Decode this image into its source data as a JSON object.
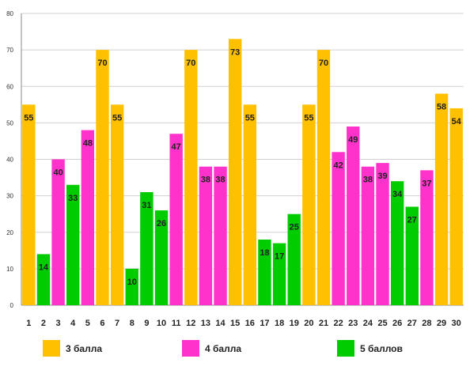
{
  "chart_data": {
    "type": "bar",
    "title": "",
    "xlabel": "",
    "ylabel": "",
    "ylim": [
      0,
      80
    ],
    "yticks": [
      0,
      10,
      20,
      30,
      40,
      50,
      60,
      70,
      80
    ],
    "grid": true,
    "legend_position": "bottom",
    "categories": [
      "1",
      "2",
      "3",
      "4",
      "5",
      "6",
      "7",
      "8",
      "9",
      "10",
      "11",
      "12",
      "13",
      "14",
      "15",
      "16",
      "17",
      "18",
      "19",
      "20",
      "21",
      "22",
      "23",
      "24",
      "25",
      "26",
      "27",
      "28",
      "29",
      "30"
    ],
    "values": [
      55,
      14,
      40,
      33,
      48,
      70,
      55,
      10,
      31,
      26,
      47,
      70,
      38,
      38,
      73,
      55,
      18,
      17,
      25,
      55,
      70,
      42,
      49,
      38,
      39,
      34,
      27,
      37,
      58,
      54
    ],
    "groups": [
      0,
      2,
      1,
      2,
      1,
      0,
      0,
      2,
      2,
      2,
      1,
      0,
      1,
      1,
      0,
      0,
      2,
      2,
      2,
      0,
      0,
      1,
      1,
      1,
      1,
      2,
      2,
      1,
      0,
      0
    ],
    "series": [
      {
        "name": "3 балла",
        "color": "#FFC000"
      },
      {
        "name": "4 балла",
        "color": "#FF33CC"
      },
      {
        "name": "5 баллов",
        "color": "#00CC00"
      }
    ]
  }
}
